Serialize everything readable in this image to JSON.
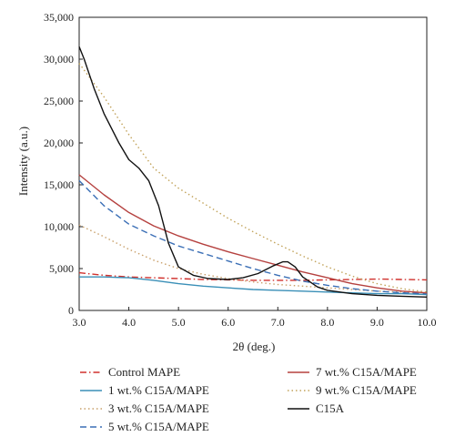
{
  "chart_data": {
    "type": "line",
    "title": "",
    "xlabel": "2θ (deg.)",
    "ylabel": "Intensity (a.u.)",
    "xlim": [
      3.0,
      10.0
    ],
    "ylim": [
      0,
      35000
    ],
    "xticks": [
      3.0,
      4.0,
      5.0,
      6.0,
      7.0,
      8.0,
      9.0,
      10.0
    ],
    "xtick_labels": [
      "3.0",
      "4.0",
      "5.0",
      "6.0",
      "7.0",
      "8.0",
      "9.0",
      "10.0"
    ],
    "yticks": [
      0,
      5000,
      10000,
      15000,
      20000,
      25000,
      30000,
      35000
    ],
    "ytick_labels": [
      "0",
      "5,000",
      "10,000",
      "15,000",
      "20,000",
      "25,000",
      "30,000",
      "35,000"
    ],
    "grid": false,
    "legend_position": "bottom",
    "series": [
      {
        "name": "Control MAPE",
        "color": "#d0312d",
        "dash": "dash-dot",
        "x": [
          3.0,
          3.5,
          4.0,
          4.5,
          5.0,
          5.5,
          6.0,
          6.5,
          7.0,
          7.5,
          8.0,
          8.5,
          9.0,
          9.5,
          10.0
        ],
        "y": [
          4500,
          4200,
          4000,
          3900,
          3800,
          3700,
          3650,
          3600,
          3600,
          3600,
          3650,
          3700,
          3750,
          3700,
          3650
        ]
      },
      {
        "name": "1 wt.% C15A/MAPE",
        "color": "#3a8fb7",
        "dash": "solid",
        "x": [
          3.0,
          3.5,
          4.0,
          4.5,
          5.0,
          5.5,
          6.0,
          6.5,
          7.0,
          7.5,
          8.0,
          8.5,
          9.0,
          9.5,
          10.0
        ],
        "y": [
          4000,
          4000,
          3900,
          3600,
          3200,
          2900,
          2700,
          2500,
          2400,
          2300,
          2200,
          2100,
          2000,
          2000,
          1900
        ]
      },
      {
        "name": "3 wt.% C15A/MAPE",
        "color": "#c9a06a",
        "dash": "dotted",
        "x": [
          3.0,
          3.5,
          4.0,
          4.5,
          5.0,
          5.5,
          6.0,
          6.5,
          7.0,
          7.5,
          8.0,
          8.5,
          9.0,
          9.5,
          10.0
        ],
        "y": [
          10200,
          8800,
          7300,
          6000,
          5000,
          4300,
          3800,
          3400,
          3100,
          2900,
          2700,
          2500,
          2300,
          2200,
          2100
        ]
      },
      {
        "name": "5 wt.% C15A/MAPE",
        "color": "#3b6fb6",
        "dash": "dashed",
        "x": [
          3.0,
          3.5,
          4.0,
          4.5,
          5.0,
          5.5,
          6.0,
          6.5,
          7.0,
          7.5,
          8.0,
          8.5,
          9.0,
          9.5,
          10.0
        ],
        "y": [
          15500,
          12500,
          10300,
          8900,
          7700,
          6800,
          5900,
          5000,
          4200,
          3500,
          3000,
          2600,
          2300,
          2100,
          2000
        ]
      },
      {
        "name": "7 wt.% C15A/MAPE",
        "color": "#b5413f",
        "dash": "solid",
        "x": [
          3.0,
          3.5,
          4.0,
          4.5,
          5.0,
          5.5,
          6.0,
          6.5,
          7.0,
          7.5,
          8.0,
          8.5,
          9.0,
          9.5,
          10.0
        ],
        "y": [
          16200,
          13800,
          11700,
          10100,
          8900,
          7900,
          7000,
          6200,
          5400,
          4600,
          3900,
          3200,
          2700,
          2300,
          2100
        ]
      },
      {
        "name": "9 wt.% C15A/MAPE",
        "color": "#c2a35a",
        "dash": "dotted",
        "x": [
          3.0,
          3.5,
          4.0,
          4.5,
          5.0,
          5.5,
          6.0,
          6.5,
          7.0,
          7.5,
          8.0,
          8.5,
          9.0,
          9.5,
          10.0
        ],
        "y": [
          29500,
          25500,
          21000,
          17000,
          14600,
          12800,
          11000,
          9400,
          7900,
          6500,
          5200,
          4100,
          3200,
          2600,
          2200
        ]
      },
      {
        "name": "C15A",
        "color": "#111111",
        "dash": "solid",
        "x": [
          3.0,
          3.1,
          3.3,
          3.5,
          3.8,
          4.0,
          4.2,
          4.4,
          4.6,
          4.8,
          5.0,
          5.3,
          5.6,
          6.0,
          6.3,
          6.6,
          6.9,
          7.1,
          7.2,
          7.35,
          7.5,
          7.8,
          8.0,
          8.5,
          9.0,
          9.5,
          10.0
        ],
        "y": [
          31500,
          30000,
          26500,
          23500,
          20000,
          18000,
          17000,
          15500,
          12500,
          8000,
          5200,
          4200,
          3800,
          3700,
          3900,
          4400,
          5300,
          5800,
          5800,
          5200,
          4000,
          2800,
          2400,
          2000,
          1800,
          1700,
          1600
        ]
      }
    ]
  }
}
